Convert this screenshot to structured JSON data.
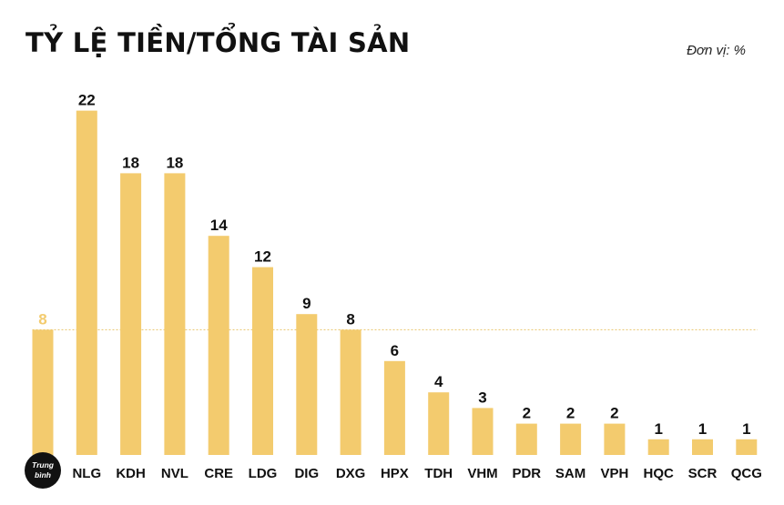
{
  "header": {
    "title": "TỶ LỆ TIỀN/TỔNG TÀI SẢN",
    "unit": "Đơn vị: %"
  },
  "colors": {
    "bar": "#F3CB6E",
    "average_value": "#F3CB6E",
    "value_text": "#111111",
    "reference_line": "#E8C56A",
    "average_badge": "#111111"
  },
  "chart_data": {
    "type": "bar",
    "title": "TỶ LỆ TIỀN/TỔNG TÀI SẢN",
    "ylabel": "",
    "xlabel": "",
    "unit": "%",
    "ylim": [
      0,
      22
    ],
    "grid": false,
    "average": {
      "label_line1": "Trung",
      "label_line2": "bình",
      "value": 8
    },
    "categories": [
      "NLG",
      "KDH",
      "NVL",
      "CRE",
      "LDG",
      "DIG",
      "DXG",
      "HPX",
      "TDH",
      "VHM",
      "PDR",
      "SAM",
      "VPH",
      "HQC",
      "SCR",
      "QCG"
    ],
    "values": [
      22,
      18,
      18,
      14,
      12,
      9,
      8,
      6,
      4,
      3,
      2,
      2,
      2,
      1,
      1,
      1
    ]
  }
}
